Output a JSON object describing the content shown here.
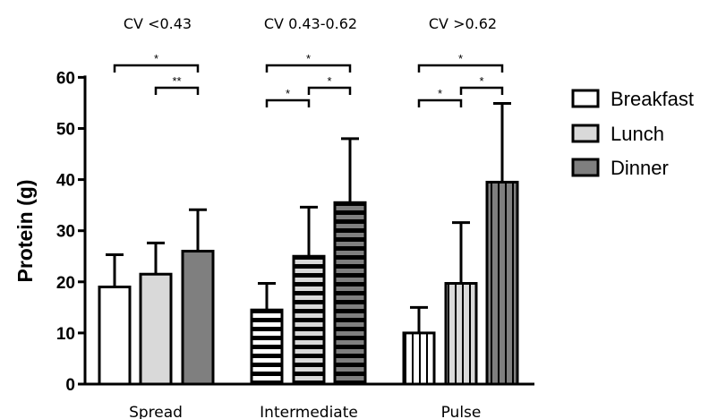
{
  "chart_data": {
    "type": "bar",
    "ylabel": "Protein (g)",
    "ylim": [
      0,
      60
    ],
    "yticks": [
      0,
      10,
      20,
      30,
      40,
      50,
      60
    ],
    "categories": [
      "Spread",
      "Intermediate",
      "Pulse"
    ],
    "group_titles": [
      "CV <0.43",
      "CV 0.43-0.62",
      "CV >0.62"
    ],
    "series": [
      {
        "name": "Breakfast",
        "color": "#ffffff",
        "values": [
          19,
          14.5,
          10
        ],
        "errors": [
          6.3,
          5.2,
          5.0
        ]
      },
      {
        "name": "Lunch",
        "color": "#d9d9d9",
        "values": [
          21.5,
          25,
          19.7
        ],
        "errors": [
          6.1,
          9.6,
          11.9
        ]
      },
      {
        "name": "Dinner",
        "color": "#7f7f7f",
        "values": [
          26,
          35.5,
          39.5
        ],
        "errors": [
          8.1,
          12.5,
          15.4
        ]
      }
    ],
    "pattern_group": "Intermediate",
    "pattern_group_style": "horizontal-stripes",
    "pulse_group_style": "vertical-stripes",
    "legend_position": "right",
    "significance": [
      {
        "group": "Spread",
        "from": "Breakfast",
        "to": "Dinner",
        "label": "*"
      },
      {
        "group": "Spread",
        "from": "Lunch",
        "to": "Dinner",
        "label": "**"
      },
      {
        "group": "Intermediate",
        "from": "Breakfast",
        "to": "Dinner",
        "label": "*"
      },
      {
        "group": "Intermediate",
        "from": "Breakfast",
        "to": "Lunch",
        "label": "*"
      },
      {
        "group": "Intermediate",
        "from": "Lunch",
        "to": "Dinner",
        "label": "*"
      },
      {
        "group": "Pulse",
        "from": "Breakfast",
        "to": "Dinner",
        "label": "*"
      },
      {
        "group": "Pulse",
        "from": "Breakfast",
        "to": "Lunch",
        "label": "*"
      },
      {
        "group": "Pulse",
        "from": "Lunch",
        "to": "Dinner",
        "label": "*"
      }
    ]
  }
}
